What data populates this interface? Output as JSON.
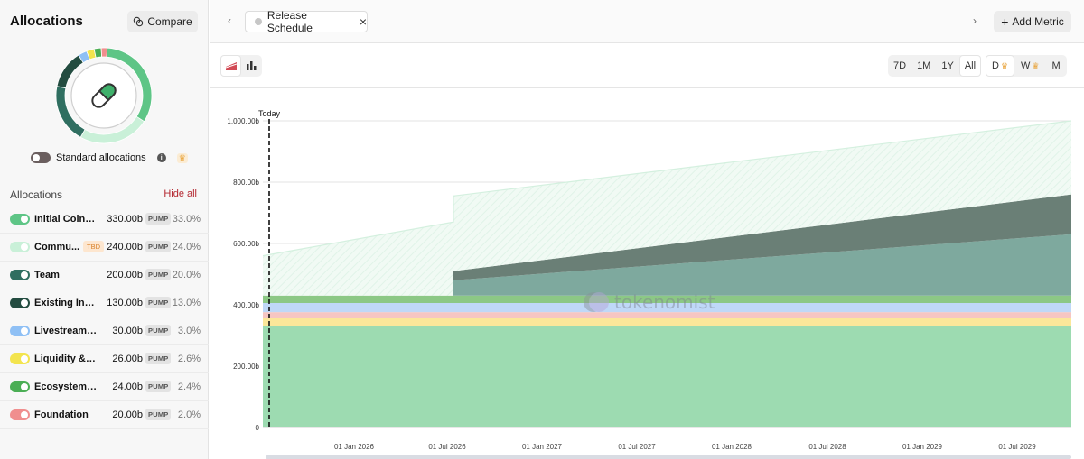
{
  "sidebar": {
    "title": "Allocations",
    "compare_label": "Compare",
    "standard_allocations_label": "Standard allocations",
    "list_header": "Allocations",
    "hide_all_label": "Hide all",
    "items": [
      {
        "label": "Initial Coin O...",
        "amount": "330.00b",
        "token": "PUMP",
        "percent": "33.0%",
        "color": "#5ec586",
        "tbd": ""
      },
      {
        "label": "Commu...",
        "amount": "240.00b",
        "token": "PUMP",
        "percent": "24.0%",
        "color": "#c9f0d8",
        "tbd": "TBD"
      },
      {
        "label": "Team",
        "amount": "200.00b",
        "token": "PUMP",
        "percent": "20.0%",
        "color": "#2f6e60",
        "tbd": ""
      },
      {
        "label": "Existing Inve...",
        "amount": "130.00b",
        "token": "PUMP",
        "percent": "13.0%",
        "color": "#234c40",
        "tbd": ""
      },
      {
        "label": "Livestreaming",
        "amount": "30.00b",
        "token": "PUMP",
        "percent": "3.0%",
        "color": "#8fc0f5",
        "tbd": ""
      },
      {
        "label": "Liquidity & E...",
        "amount": "26.00b",
        "token": "PUMP",
        "percent": "2.6%",
        "color": "#f3e44e",
        "tbd": ""
      },
      {
        "label": "Ecosystem F...",
        "amount": "24.00b",
        "token": "PUMP",
        "percent": "2.4%",
        "color": "#4bae55",
        "tbd": ""
      },
      {
        "label": "Foundation",
        "amount": "20.00b",
        "token": "PUMP",
        "percent": "2.0%",
        "color": "#f08e8e",
        "tbd": ""
      }
    ]
  },
  "header": {
    "tab_label": "Release Schedule",
    "add_metric_label": "Add Metric"
  },
  "toolbar": {
    "ranges": [
      "7D",
      "1M",
      "1Y",
      "All"
    ],
    "active_range": "All",
    "resolutions": [
      "D",
      "W",
      "M"
    ],
    "active_resolution": "D"
  },
  "chart_data": {
    "type": "area",
    "today_label": "Today",
    "watermark": "tokenomist",
    "y_ticks": [
      "0",
      "200.00b",
      "400.00b",
      "600.00b",
      "800.00b",
      "1,000.00b"
    ],
    "ylim": [
      0,
      1000
    ],
    "x_ticks": [
      "01 Jan 2026",
      "01 Jul 2026",
      "01 Jan 2027",
      "01 Jul 2027",
      "01 Jan 2028",
      "01 Jul 2028",
      "01 Jan 2029",
      "01 Jul 2029"
    ],
    "series": [
      {
        "name": "Initial Coin Offering",
        "color": "#9ddbb1",
        "values": {
          "start": 330,
          "end": 330
        }
      },
      {
        "name": "Liquidity & Exchanges",
        "color": "#fbe79a",
        "values": {
          "start": 26,
          "end": 26
        }
      },
      {
        "name": "Foundation",
        "color": "#f6c6c3",
        "values": {
          "start": 20,
          "end": 20
        }
      },
      {
        "name": "Livestreaming",
        "color": "#bfd8f7",
        "values": {
          "start": 30,
          "end": 30
        }
      },
      {
        "name": "Ecosystem Fund",
        "color": "#8cc885",
        "values": {
          "start": 24,
          "end": 24
        }
      },
      {
        "name": "Team",
        "color": "#7ea99e",
        "values": {
          "start": 0,
          "unlock": 50,
          "end": 200
        }
      },
      {
        "name": "Existing Investors",
        "color": "#6a7f76",
        "values": {
          "start": 0,
          "unlock": 30,
          "end": 130
        }
      },
      {
        "name": "Community",
        "color": "#e8f6ee",
        "values": {
          "start": 130,
          "end": 240
        }
      }
    ]
  }
}
